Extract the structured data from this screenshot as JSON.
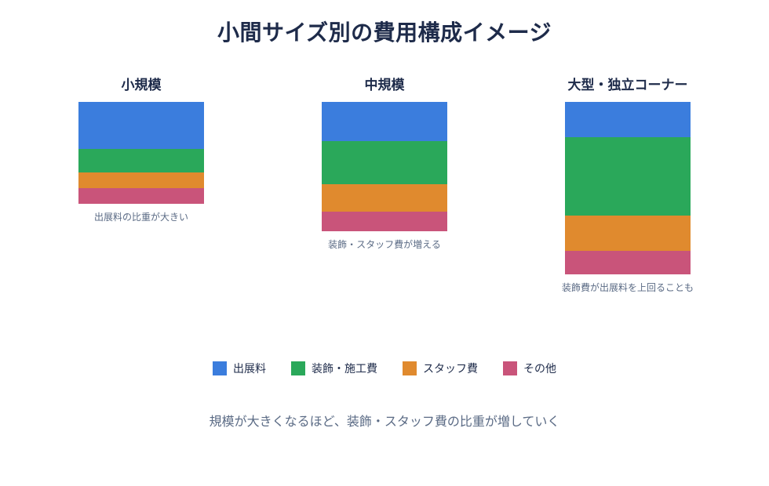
{
  "chart_data": {
    "type": "bar",
    "title": "小間サイズ別の費用構成イメージ",
    "stacked": true,
    "categories": [
      "小規模",
      "中規模",
      "大型・独立コーナー"
    ],
    "notes": [
      "出展料の比重が大きい",
      "装飾・スタッフ費が増える",
      "装飾費が出展料を上回ることも"
    ],
    "series": [
      {
        "name": "出展料",
        "color": "#3b7ddd",
        "values": [
          60,
          50,
          45
        ]
      },
      {
        "name": "装飾・施工費",
        "color": "#2aa85a",
        "values": [
          30,
          55,
          100
        ]
      },
      {
        "name": "スタッフ費",
        "color": "#e08a2e",
        "values": [
          20,
          35,
          45
        ]
      },
      {
        "name": "その他",
        "color": "#c9547a",
        "values": [
          20,
          25,
          30
        ]
      }
    ],
    "footnote": "規模が大きくなるほど、装飾・スタッフ費の比重が増していく"
  }
}
